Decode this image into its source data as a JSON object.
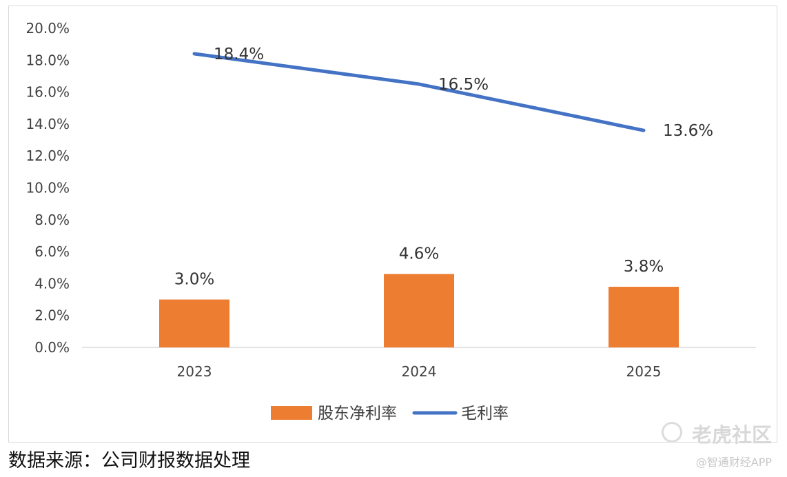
{
  "chart_data": {
    "type": "bar+line",
    "categories": [
      "2023",
      "2024",
      "2025"
    ],
    "series": [
      {
        "name": "股东净利率",
        "kind": "bar",
        "values": [
          3.0,
          4.6,
          3.8
        ],
        "labels": [
          "3.0%",
          "4.6%",
          "3.8%"
        ],
        "color": "#ED7D31"
      },
      {
        "name": "毛利率",
        "kind": "line",
        "values": [
          18.4,
          16.5,
          13.6
        ],
        "labels": [
          "18.4%",
          "16.5%",
          "13.6%"
        ],
        "color": "#4472C4"
      }
    ],
    "ylim": [
      0,
      20
    ],
    "yticks": [
      "0.0%",
      "2.0%",
      "4.0%",
      "6.0%",
      "8.0%",
      "10.0%",
      "12.0%",
      "14.0%",
      "16.0%",
      "18.0%",
      "20.0%"
    ],
    "legend": "bottom"
  },
  "source": "数据来源：公司财报数据处理",
  "watermark": {
    "line1": "老虎社区",
    "line2": "@智通财经APP"
  }
}
